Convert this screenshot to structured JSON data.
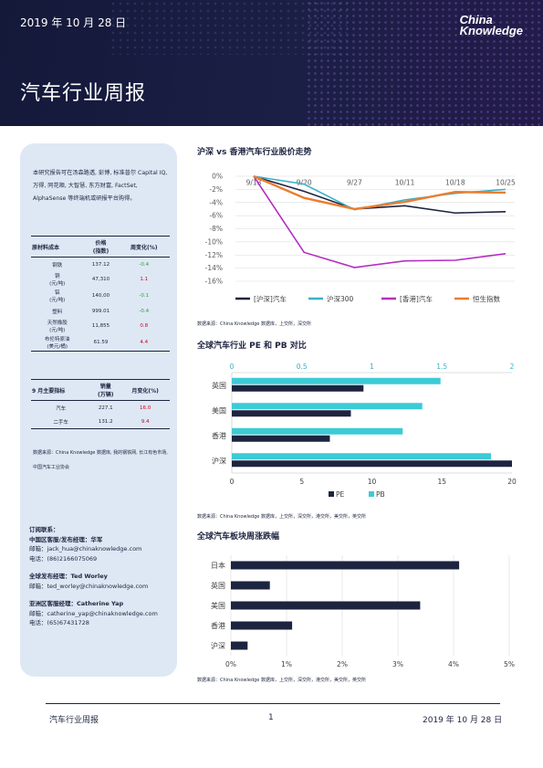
{
  "header": {
    "date": "2019 年 10 月 28 日",
    "logo_line1": "China",
    "logo_line2": "Knowledge",
    "title": "汽车行业周报"
  },
  "sidebar": {
    "intro": "本研究报告可在汤森路透, 彭博, 标准普尔 Capital IQ, 万得, 同花顺, 大智慧, 东方财富, FactSet, AlphaSense 等终端机或研报平台购得。",
    "materials_table": {
      "headers": [
        "原材料成本",
        "价格\n(指数)",
        "周变化(%)"
      ],
      "rows": [
        {
          "name": "钢铁",
          "price": "137.12",
          "change": "-0.4",
          "dir": "neg"
        },
        {
          "name": "铜\n(元/吨)",
          "price": "47,310",
          "change": "1.1",
          "dir": "pos"
        },
        {
          "name": "铝\n(元/吨)",
          "price": "140,00",
          "change": "-0.1",
          "dir": "neg"
        },
        {
          "name": "塑料",
          "price": "999.01",
          "change": "-0.4",
          "dir": "neg"
        },
        {
          "name": "天然橡胶\n(元/吨)",
          "price": "11,855",
          "change": "0.8",
          "dir": "pos"
        },
        {
          "name": "布伦特原油\n(美元/桶)",
          "price": "61.59",
          "change": "4.4",
          "dir": "pos"
        }
      ]
    },
    "sales_table": {
      "headers": [
        "9 月主要指标",
        "销量\n(万辆)",
        "月变化(%)"
      ],
      "rows": [
        {
          "name": "汽车",
          "value": "227.1",
          "change": "16.0",
          "dir": "pos"
        },
        {
          "name": "二手车",
          "value": "131.2",
          "change": "9.4",
          "dir": "pos"
        }
      ]
    },
    "source": "数据来源：China Knowledge 数据库, 我的钢铁网, 长江有色市场, 中国汽车工业协会",
    "contacts": {
      "heading": "订阅联系：",
      "groups": [
        {
          "title": "中国区客服/发布经理：华军",
          "email": "邮箱：jack_hua@chinaknowledge.com",
          "phone": "电话：(86)2166075069"
        },
        {
          "title": "全球发布经理：Ted Worley",
          "email": "邮箱：ted_worley@chinaknowledge.com",
          "phone": ""
        },
        {
          "title": "亚洲区客服经理：Catherine Yap",
          "email": "邮箱：catherine_yap@chinaknowledge.com",
          "phone": "电话：(65)67431728"
        }
      ]
    }
  },
  "sections": {
    "chart1_title": "沪深 vs 香港汽车行业股价走势",
    "chart1_source": "数据来源：China Knowledge 数据库，上交所，深交所",
    "chart2_title": "全球汽车行业 PE 和 PB 对比",
    "chart2_source": "数据来源：China Knowledge 数据库，上交所，深交所，港交所，美交所，英交所",
    "chart3_title": "全球汽车板块周涨跌幅",
    "chart3_source": "数据来源：China Knowledge 数据库，上交所，深交所，港交所，美交所，英交所"
  },
  "footer": {
    "left": "汽车行业周报",
    "page": "1",
    "right": "2019 年 10 月 28 日"
  },
  "chart_data": [
    {
      "type": "line",
      "title": "沪深 vs 香港汽车行业股价走势",
      "x": [
        "9/13",
        "9/20",
        "9/27",
        "10/11",
        "10/18",
        "10/25"
      ],
      "ylim": [
        -16,
        0
      ],
      "yticks": [
        0,
        -2,
        -4,
        -6,
        -8,
        -10,
        -12,
        -14,
        -16
      ],
      "ytick_labels": [
        "0%",
        "-2%",
        "-4%",
        "-6%",
        "-8%",
        "-10%",
        "-12%",
        "-14%",
        "-16%"
      ],
      "grid": true,
      "legend": "bottom",
      "series": [
        {
          "name": "[沪深]汽车",
          "color": "#1d2440",
          "values": [
            0,
            -2.3,
            -5.0,
            -4.5,
            -5.6,
            -5.4
          ]
        },
        {
          "name": "沪深300",
          "color": "#3ab0c8",
          "values": [
            0,
            -1.2,
            -5.1,
            -3.6,
            -2.6,
            -2.0
          ]
        },
        {
          "name": "[香港]汽车",
          "color": "#b52fc2",
          "values": [
            0,
            -11.6,
            -13.9,
            -12.9,
            -12.8,
            -11.8
          ]
        },
        {
          "name": "恒生指数",
          "color": "#ec7d2f",
          "values": [
            0,
            -3.3,
            -5.0,
            -3.9,
            -2.4,
            -2.5
          ]
        }
      ]
    },
    {
      "type": "bar",
      "orientation": "horizontal",
      "title": "全球汽车行业 PE 和 PB 对比",
      "categories": [
        "英国",
        "美国",
        "香港",
        "沪深"
      ],
      "x_bottom": {
        "lim": [
          0,
          20
        ],
        "ticks": [
          "0",
          "5",
          "10",
          "15",
          "20"
        ]
      },
      "x_top": {
        "lim": [
          0,
          2
        ],
        "ticks": [
          "0",
          "0.5",
          "1",
          "1.5",
          "2"
        ],
        "color": "#3ab0c8"
      },
      "legend": "bottom",
      "series": [
        {
          "name": "PE",
          "color": "#1d2440",
          "axis": "bottom",
          "values": [
            9.4,
            8.5,
            7.0,
            20.0
          ]
        },
        {
          "name": "PB",
          "color": "#3ccbd6",
          "axis": "top",
          "values": [
            1.49,
            1.36,
            1.22,
            1.85
          ]
        }
      ]
    },
    {
      "type": "bar",
      "orientation": "horizontal",
      "title": "全球汽车板块周涨跌幅",
      "categories": [
        "日本",
        "英国",
        "美国",
        "香港",
        "沪深"
      ],
      "values": [
        4.1,
        0.7,
        3.4,
        1.1,
        0.3
      ],
      "xlim": [
        0,
        5
      ],
      "xticks": [
        "0%",
        "1%",
        "2%",
        "3%",
        "4%",
        "5%"
      ],
      "color": "#1d2440",
      "grid": true
    }
  ]
}
